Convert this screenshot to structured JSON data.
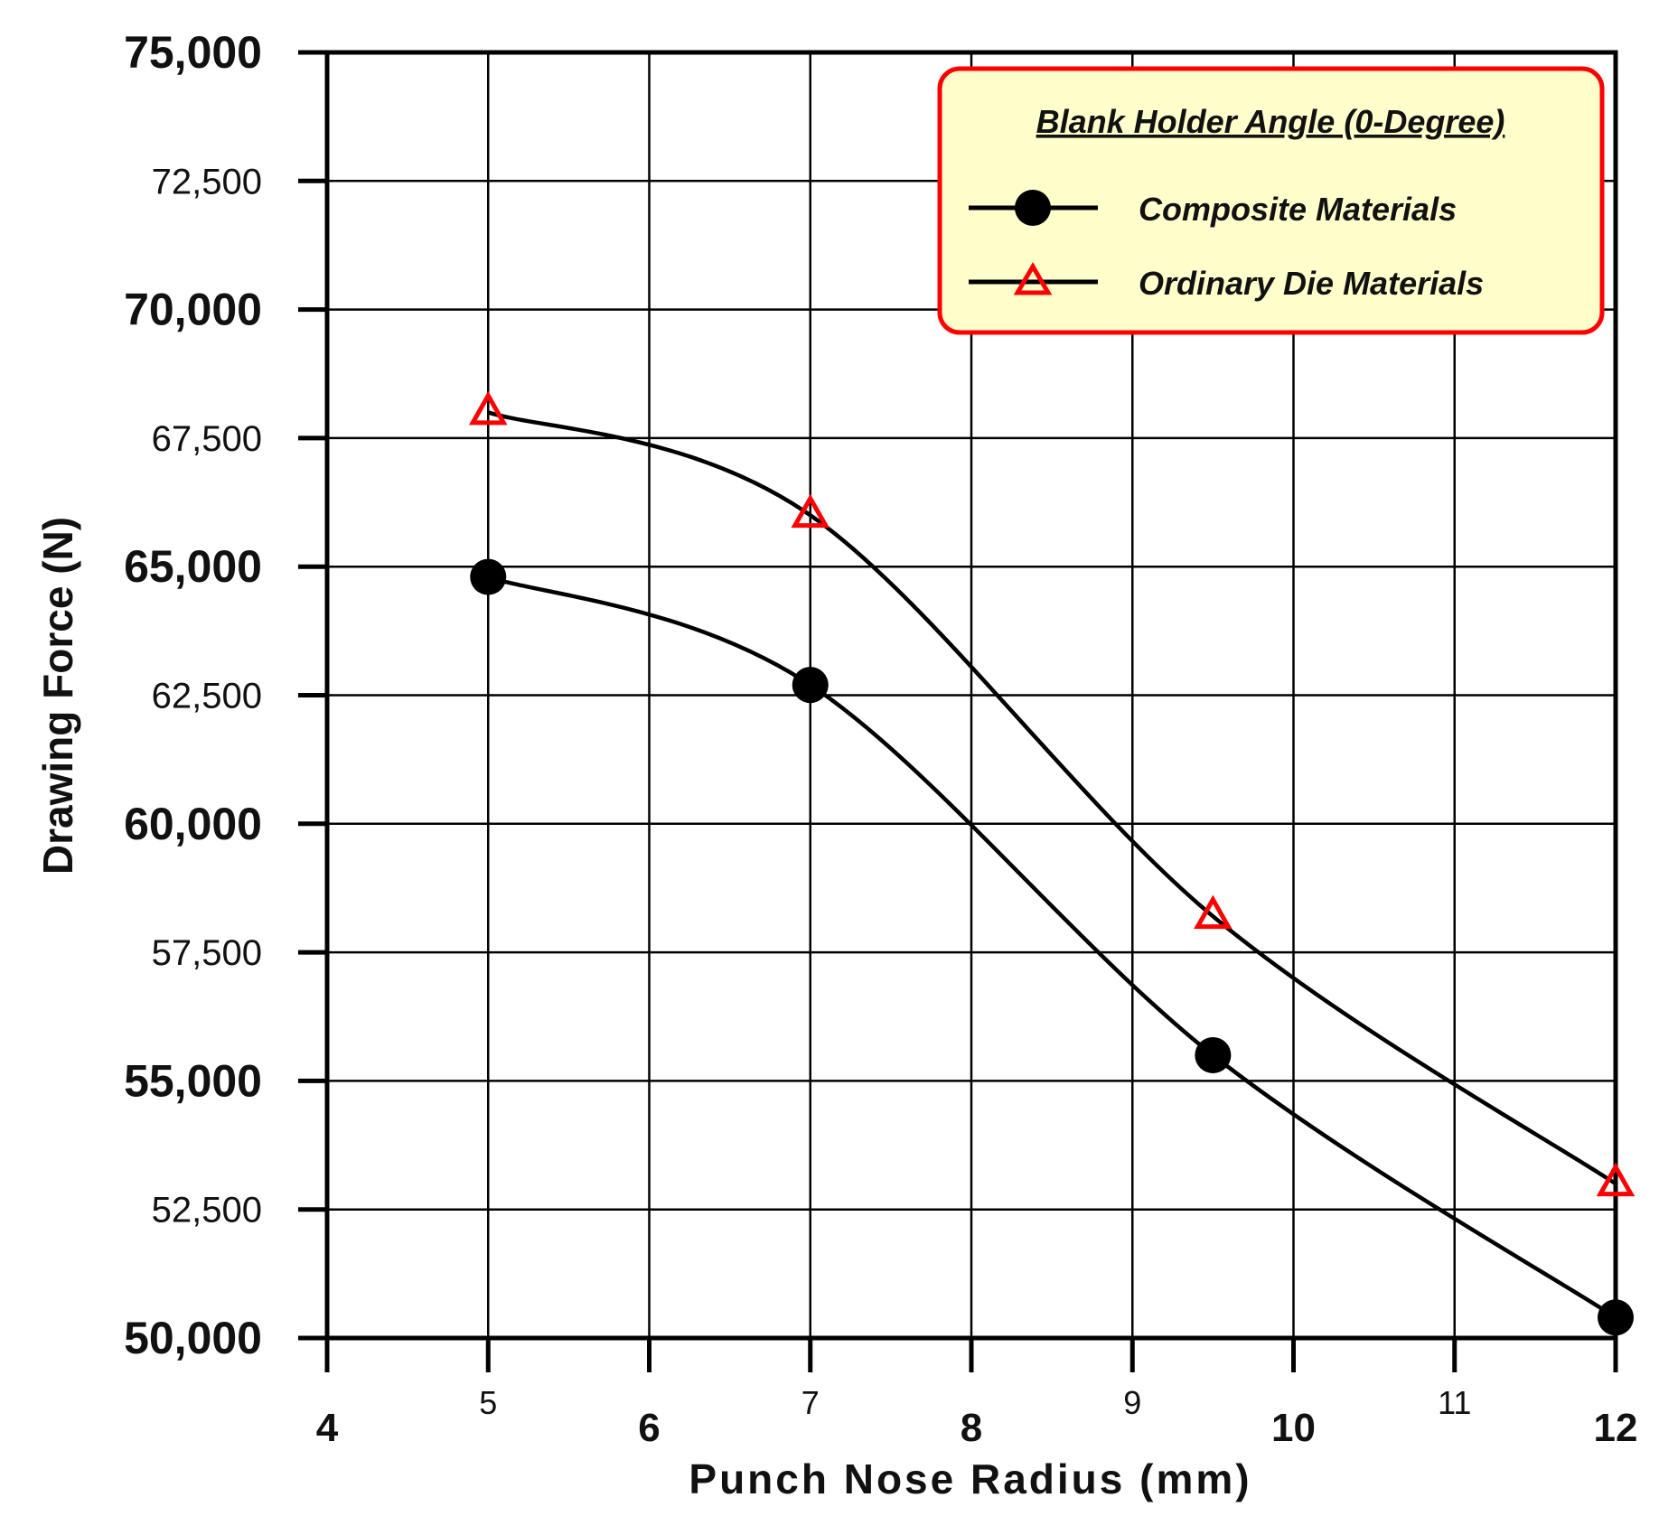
{
  "chart_data": {
    "type": "line",
    "title": "",
    "xlabel": "Punch Nose Radius (mm)",
    "ylabel": "Drawing Force (N)",
    "xlim": [
      4,
      12
    ],
    "ylim": [
      50000,
      75000
    ],
    "grid": true,
    "x_ticks": [
      {
        "value": 4,
        "label": "4",
        "style": "major"
      },
      {
        "value": 5,
        "label": "5",
        "style": "minor"
      },
      {
        "value": 6,
        "label": "6",
        "style": "major"
      },
      {
        "value": 7,
        "label": "7",
        "style": "minor"
      },
      {
        "value": 8,
        "label": "8",
        "style": "major"
      },
      {
        "value": 9,
        "label": "9",
        "style": "minor"
      },
      {
        "value": 10,
        "label": "10",
        "style": "major"
      },
      {
        "value": 11,
        "label": "11",
        "style": "minor"
      },
      {
        "value": 12,
        "label": "12",
        "style": "major"
      }
    ],
    "y_ticks": [
      {
        "value": 50000,
        "label": "50,000",
        "style": "major"
      },
      {
        "value": 52500,
        "label": "52,500",
        "style": "minor"
      },
      {
        "value": 55000,
        "label": "55,000",
        "style": "major"
      },
      {
        "value": 57500,
        "label": "57,500",
        "style": "minor"
      },
      {
        "value": 60000,
        "label": "60,000",
        "style": "major"
      },
      {
        "value": 62500,
        "label": "62,500",
        "style": "minor"
      },
      {
        "value": 65000,
        "label": "65,000",
        "style": "major"
      },
      {
        "value": 67500,
        "label": "67,500",
        "style": "minor"
      },
      {
        "value": 70000,
        "label": "70,000",
        "style": "major"
      },
      {
        "value": 72500,
        "label": "72,500",
        "style": "minor"
      },
      {
        "value": 75000,
        "label": "75,000",
        "style": "major"
      }
    ],
    "legend": {
      "title": "Blank Holder Angle (0-Degree)",
      "position": "top-right"
    },
    "series": [
      {
        "name": "Composite Materials",
        "marker": "circle",
        "line_color": "#000000",
        "marker_color": "#000000",
        "x": [
          5,
          7,
          9.5,
          12
        ],
        "y": [
          64800,
          62700,
          55500,
          50400
        ]
      },
      {
        "name": "Ordinary Die Materials",
        "marker": "triangle",
        "line_color": "#000000",
        "marker_color": "#ff0000",
        "x": [
          5,
          7,
          9.5,
          12
        ],
        "y": [
          68000,
          66000,
          58200,
          53000
        ]
      }
    ],
    "colors": {
      "legend_border": "#ff0000",
      "legend_fill": "#ffffcc",
      "grid": "#000000"
    }
  }
}
